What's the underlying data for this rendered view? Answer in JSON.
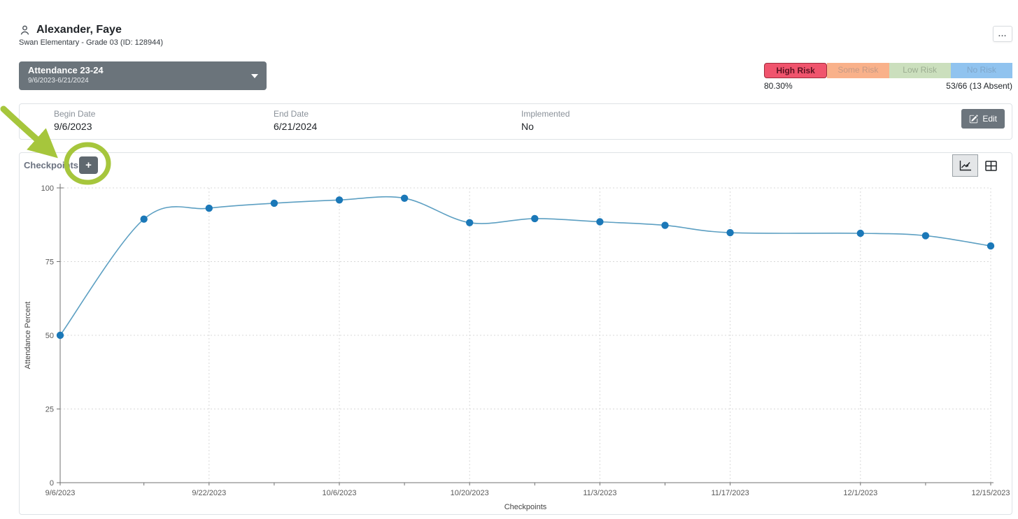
{
  "header": {
    "name": "Alexander, Faye",
    "subtitle": "Swan Elementary - Grade 03 (ID: 128944)",
    "menu_label": "..."
  },
  "intervention_select": {
    "title": "Attendance 23-24",
    "date_range": "9/6/2023-6/21/2024"
  },
  "risk": {
    "badges": [
      {
        "label": "High Risk",
        "bg": "#f0546d",
        "border": "#a02c3d",
        "text_color": "#5c1322",
        "selected": true
      },
      {
        "label": "Some Risk",
        "bg": "#f9b18a",
        "border": "",
        "text_color": "#c59a85",
        "selected": false
      },
      {
        "label": "Low Risk",
        "bg": "#cbdfbd",
        "border": "",
        "text_color": "#9cad92",
        "selected": false
      },
      {
        "label": "No Risk",
        "bg": "#90c3ef",
        "border": "",
        "text_color": "#7fa6c9",
        "selected": false
      }
    ],
    "percent": "80.30%",
    "ratio": "53/66 (13 Absent)"
  },
  "details": {
    "fields": [
      {
        "label": "Begin Date",
        "value": "9/6/2023"
      },
      {
        "label": "End Date",
        "value": "6/21/2024"
      },
      {
        "label": "Implemented",
        "value": "No"
      }
    ],
    "edit_label": "Edit"
  },
  "checkpoints_panel": {
    "title": "Checkpoints",
    "add_label": "+"
  },
  "annotation": {
    "color": "#a6c63c"
  },
  "chart_data": {
    "type": "line",
    "title": "Checkpoints",
    "xlabel": "Checkpoints",
    "ylabel": "Attendance Percent",
    "ylim": [
      0,
      100
    ],
    "yticks": [
      0,
      25,
      50,
      75,
      100
    ],
    "grid": true,
    "legend": "none",
    "x_dates": [
      "9/6/2023",
      "9/15/2023",
      "9/22/2023",
      "9/29/2023",
      "10/6/2023",
      "10/13/2023",
      "10/20/2023",
      "10/27/2023",
      "11/3/2023",
      "11/10/2023",
      "11/17/2023",
      "12/1/2023",
      "12/8/2023",
      "12/15/2023"
    ],
    "x_offsets": [
      0,
      9,
      16,
      23,
      30,
      37,
      44,
      51,
      58,
      65,
      72,
      86,
      93,
      100
    ],
    "values": [
      50,
      89.4,
      93.1,
      94.8,
      95.9,
      96.5,
      88.2,
      89.6,
      88.5,
      87.3,
      84.8,
      84.6,
      83.8,
      80.3
    ],
    "xticks": [
      {
        "offset": 0,
        "label": "9/6/2023"
      },
      {
        "offset": 16,
        "label": "9/22/2023"
      },
      {
        "offset": 30,
        "label": "10/6/2023"
      },
      {
        "offset": 44,
        "label": "10/20/2023"
      },
      {
        "offset": 58,
        "label": "11/3/2023"
      },
      {
        "offset": 72,
        "label": "11/17/2023"
      },
      {
        "offset": 86,
        "label": "12/1/2023"
      },
      {
        "offset": 100,
        "label": "12/15/2023"
      }
    ],
    "line_color": "#5c9fc2",
    "marker_color": "#1b78b8"
  }
}
